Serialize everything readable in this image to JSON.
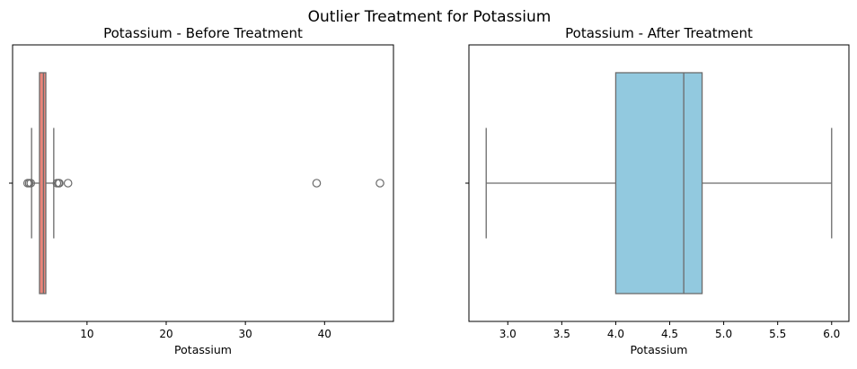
{
  "suptitle": "Outlier Treatment for Potassium",
  "chart_data": [
    {
      "type": "box",
      "title": "Potassium - Before Treatment",
      "xlabel": "Potassium",
      "xlim": [
        0.6,
        48.7
      ],
      "xticks": [
        10,
        20,
        30,
        40
      ],
      "xtick_labels": [
        "10",
        "20",
        "30",
        "40"
      ],
      "orientation": "horizontal",
      "color": "#e9857a",
      "box": {
        "whisker_low": 3.0,
        "q1": 4.0,
        "median": 4.5,
        "q3": 4.8,
        "whisker_high": 5.8
      },
      "outliers": [
        2.5,
        2.7,
        2.9,
        6.2,
        6.4,
        6.5,
        7.6,
        39.0,
        47.0
      ]
    },
    {
      "type": "box",
      "title": "Potassium - After Treatment",
      "xlabel": "Potassium",
      "xlim": [
        2.64,
        6.16
      ],
      "xticks": [
        3.0,
        3.5,
        4.0,
        4.5,
        5.0,
        5.5,
        6.0
      ],
      "xtick_labels": [
        "3.0",
        "3.5",
        "4.0",
        "4.5",
        "5.0",
        "5.5",
        "6.0"
      ],
      "orientation": "horizontal",
      "color": "#92c9df",
      "box": {
        "whisker_low": 2.8,
        "q1": 4.0,
        "median": 4.63,
        "q3": 4.8,
        "whisker_high": 6.0
      },
      "outliers": []
    }
  ]
}
